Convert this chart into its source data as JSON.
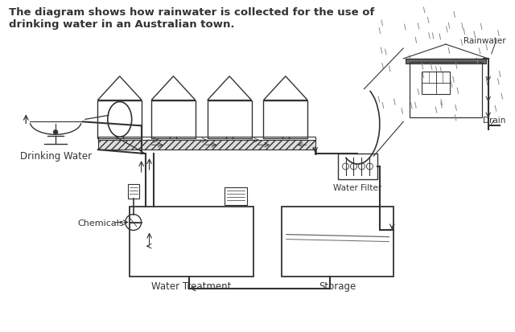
{
  "title": "The diagram shows how rainwater is collected for the use of\ndrinking water in an Australian town.",
  "title_fontsize": 9.5,
  "bg_color": "#ffffff",
  "labels": {
    "rainwater": "Rainwater",
    "drain": "Drain",
    "drinking_water": "Drinking Water",
    "water_filter": "Water Filter",
    "chemicals": "Chemicals",
    "water_treatment": "Water Treatment",
    "storage": "Storage"
  },
  "line_color": "#333333",
  "hatch_color": "#555555"
}
